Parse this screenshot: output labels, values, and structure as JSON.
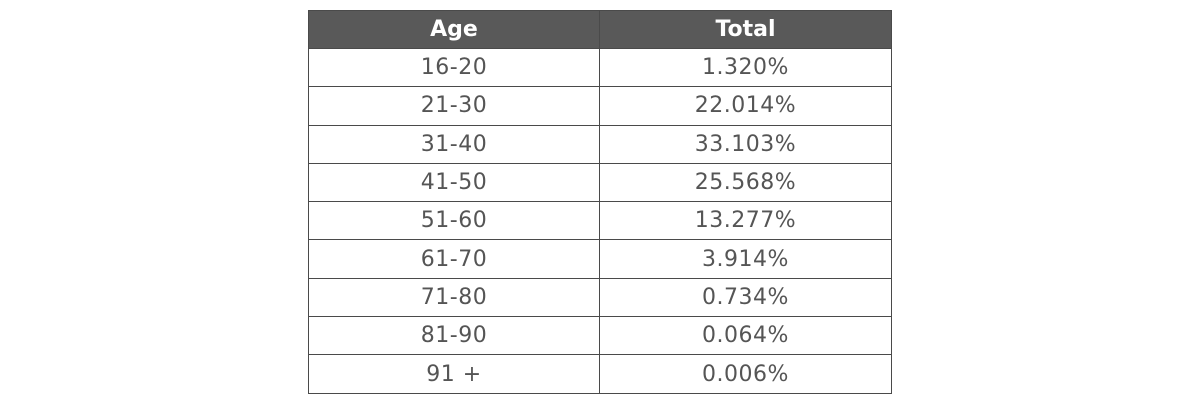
{
  "chart_data": {
    "type": "table",
    "columns": [
      "Age",
      "Total"
    ],
    "rows": [
      {
        "age": "16-20",
        "total": "1.320%"
      },
      {
        "age": "21-30",
        "total": "22.014%"
      },
      {
        "age": "31-40",
        "total": "33.103%"
      },
      {
        "age": "41-50",
        "total": "25.568%"
      },
      {
        "age": "51-60",
        "total": "13.277%"
      },
      {
        "age": "61-70",
        "total": "3.914%"
      },
      {
        "age": "71-80",
        "total": "0.734%"
      },
      {
        "age": "81-90",
        "total": "0.064%"
      },
      {
        "age": "91 +",
        "total": "0.006%"
      }
    ]
  },
  "colors": {
    "header_bg": "#595959",
    "header_text": "#ffffff",
    "cell_text": "#555555",
    "border": "#4a4a4a"
  }
}
